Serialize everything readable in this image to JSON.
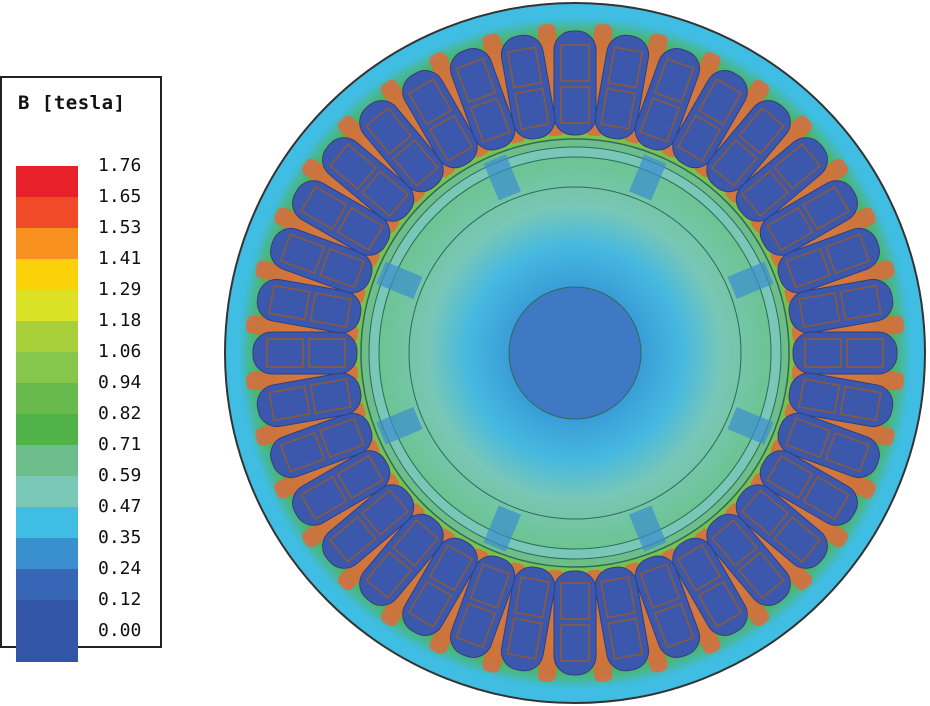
{
  "legend": {
    "title": "B [tesla]",
    "levels": [
      {
        "value": "1.76",
        "color": "#e8202a"
      },
      {
        "value": "1.65",
        "color": "#f04a28"
      },
      {
        "value": "1.53",
        "color": "#f7901e"
      },
      {
        "value": "1.41",
        "color": "#fbd10a"
      },
      {
        "value": "1.29",
        "color": "#dbe125"
      },
      {
        "value": "1.18",
        "color": "#a8d03a"
      },
      {
        "value": "1.06",
        "color": "#86c64a"
      },
      {
        "value": "0.94",
        "color": "#67ba4b"
      },
      {
        "value": "0.82",
        "color": "#4fb34a"
      },
      {
        "value": "0.71",
        "color": "#6ebe8c"
      },
      {
        "value": "0.59",
        "color": "#79c7b6"
      },
      {
        "value": "0.47",
        "color": "#3fbde3"
      },
      {
        "value": "0.35",
        "color": "#3a8fce"
      },
      {
        "value": "0.24",
        "color": "#3766b6"
      },
      {
        "value": "0.12",
        "color": "#3355a7"
      },
      {
        "value": "0.00",
        "color": "#3355a7"
      }
    ]
  },
  "colors": {
    "slot_fill": "#3c58ad",
    "slot_outline": "#8a5a3c",
    "tooth_hot": "#e0683a",
    "yoke_mid": "#7cc24c",
    "rotor_outer": "#6cc492",
    "rotor_mid": "#46b9e0",
    "shaft": "#3f79c4"
  },
  "figure": {
    "stator_slots": 36
  }
}
